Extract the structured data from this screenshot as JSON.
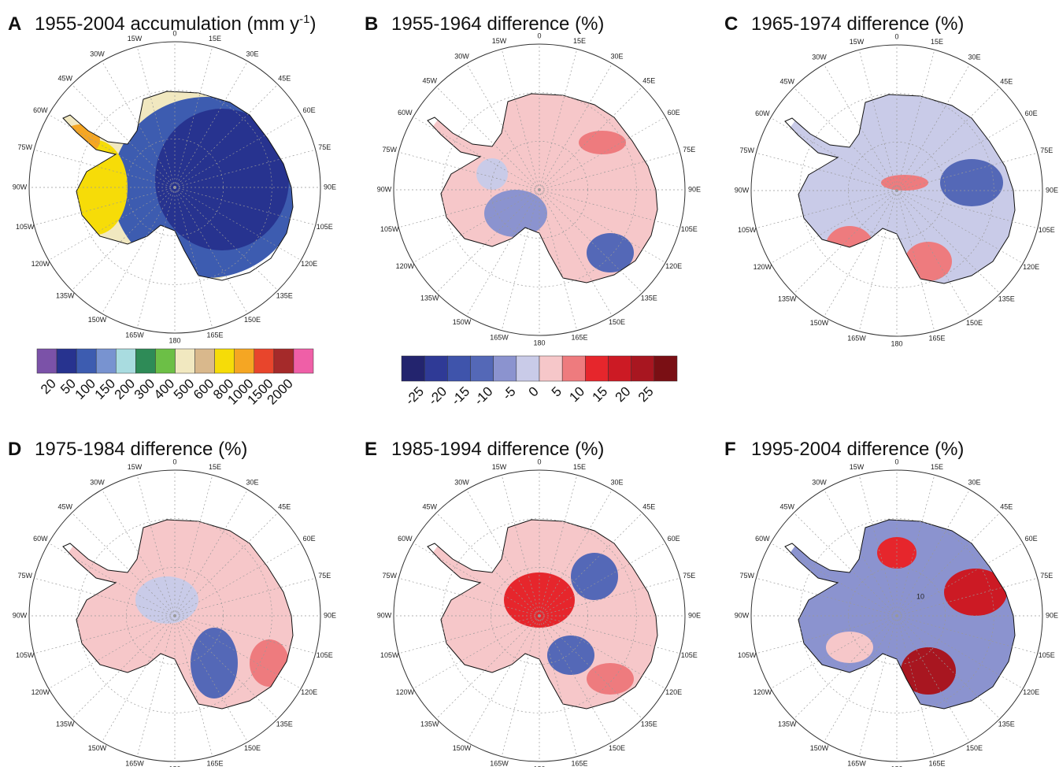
{
  "panels": [
    {
      "letter": "A",
      "title": "1955-2004 accumulation (mm y",
      "title_superscript": "-1",
      "title_end": ")"
    },
    {
      "letter": "B",
      "title": "1955-1964 difference (%)"
    },
    {
      "letter": "C",
      "title": "1965-1974 difference (%)"
    },
    {
      "letter": "D",
      "title": "1975-1984 difference (%)"
    },
    {
      "letter": "E",
      "title": "1985-1994 difference (%)"
    },
    {
      "letter": "F",
      "title": "1995-2004 difference (%)",
      "annotation": "10"
    }
  ],
  "longitude_labels": [
    "0",
    "15E",
    "30E",
    "45E",
    "60E",
    "75E",
    "90E",
    "105E",
    "120E",
    "135E",
    "150E",
    "165E",
    "180",
    "165W",
    "150W",
    "135W",
    "120W",
    "105W",
    "90W",
    "75W",
    "60W",
    "45W",
    "30W",
    "15W"
  ],
  "colorbars": [
    {
      "colors": [
        "#7b52a8",
        "#27338f",
        "#3d5cb0",
        "#7893d0",
        "#a9dce0",
        "#2e8b57",
        "#6cbf46",
        "#f1e8c0",
        "#d9b88c",
        "#f6dc08",
        "#f5a623",
        "#e8452c",
        "#a52a2a",
        "#ef5fa7"
      ],
      "labels": [
        20,
        50,
        100,
        150,
        200,
        300,
        400,
        500,
        600,
        800,
        1000,
        1500,
        2000
      ]
    },
    {
      "colors": [
        "#23246e",
        "#2f3a96",
        "#3f54ab",
        "#5468b7",
        "#8b93cf",
        "#c9cbe8",
        "#f6c7c9",
        "#ee7b7e",
        "#e6262c",
        "#cc1a24",
        "#a81620",
        "#7a0f14"
      ],
      "labels": [
        -25,
        -20,
        -15,
        -10,
        -5,
        0,
        5,
        10,
        15,
        20,
        25
      ]
    }
  ]
}
